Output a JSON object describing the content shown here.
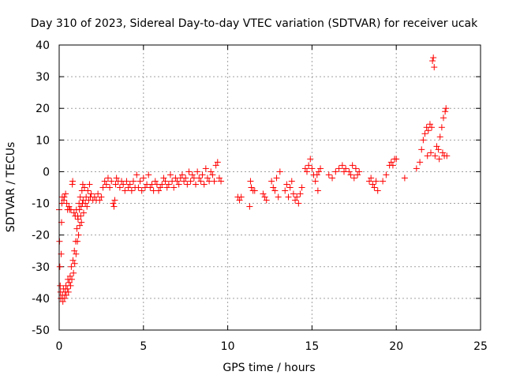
{
  "chart_data": {
    "type": "scatter",
    "title": "Day 310 of 2023, Sidereal Day-to-day VTEC variation (SDTVAR) for receiver ucak",
    "xlabel": "GPS time / hours",
    "ylabel": "SDTVAR / TECUs",
    "xlim": [
      0,
      25
    ],
    "ylim": [
      -50,
      40
    ],
    "xticks": [
      0,
      5,
      10,
      15,
      20,
      25
    ],
    "yticks": [
      -50,
      -40,
      -30,
      -20,
      -10,
      0,
      10,
      20,
      30,
      40
    ],
    "xtick_labels": [
      "0",
      "5",
      "10",
      "15",
      "20",
      "25"
    ],
    "ytick_labels": [
      "-50",
      "-40",
      "-30",
      "-20",
      "-10",
      "0",
      "10",
      "20",
      "30",
      "40"
    ],
    "grid": true,
    "marker": "+",
    "color": "#ff0000",
    "series": [
      {
        "name": "SDTVAR",
        "points": [
          [
            0.0,
            -12
          ],
          [
            0.02,
            -22
          ],
          [
            0.04,
            -30
          ],
          [
            0.06,
            -36
          ],
          [
            0.08,
            -38
          ],
          [
            0.1,
            -40
          ],
          [
            0.12,
            -26
          ],
          [
            0.14,
            -16
          ],
          [
            0.16,
            -10
          ],
          [
            0.18,
            -8
          ],
          [
            0.2,
            -39
          ],
          [
            0.22,
            -41
          ],
          [
            0.25,
            -37
          ],
          [
            0.28,
            -9
          ],
          [
            0.3,
            -8
          ],
          [
            0.32,
            -40
          ],
          [
            0.35,
            -38
          ],
          [
            0.38,
            -7
          ],
          [
            0.4,
            -36
          ],
          [
            0.42,
            -39
          ],
          [
            0.45,
            -10
          ],
          [
            0.48,
            -37
          ],
          [
            0.5,
            -12
          ],
          [
            0.52,
            -34
          ],
          [
            0.55,
            -38
          ],
          [
            0.58,
            -11
          ],
          [
            0.6,
            -35
          ],
          [
            0.62,
            -12
          ],
          [
            0.65,
            -33
          ],
          [
            0.68,
            -36
          ],
          [
            0.7,
            -12
          ],
          [
            0.72,
            -30
          ],
          [
            0.75,
            -34
          ],
          [
            0.78,
            -4
          ],
          [
            0.8,
            -3
          ],
          [
            0.82,
            -28
          ],
          [
            0.85,
            -32
          ],
          [
            0.88,
            -13
          ],
          [
            0.9,
            -25
          ],
          [
            0.92,
            -29
          ],
          [
            0.95,
            -14
          ],
          [
            0.98,
            -22
          ],
          [
            1.0,
            -26
          ],
          [
            1.02,
            -12
          ],
          [
            1.05,
            -18
          ],
          [
            1.08,
            -22
          ],
          [
            1.1,
            -14
          ],
          [
            1.12,
            -15
          ],
          [
            1.15,
            -20
          ],
          [
            1.18,
            -10
          ],
          [
            1.2,
            -12
          ],
          [
            1.22,
            -17
          ],
          [
            1.25,
            -8
          ],
          [
            1.28,
            -14
          ],
          [
            1.3,
            -11
          ],
          [
            1.32,
            -16
          ],
          [
            1.35,
            -6
          ],
          [
            1.38,
            -10
          ],
          [
            1.4,
            -4
          ],
          [
            1.42,
            -9
          ],
          [
            1.45,
            -13
          ],
          [
            1.5,
            -5
          ],
          [
            1.55,
            -10
          ],
          [
            1.6,
            -8
          ],
          [
            1.65,
            -11
          ],
          [
            1.7,
            -6
          ],
          [
            1.75,
            -9
          ],
          [
            1.8,
            -4
          ],
          [
            1.85,
            -8
          ],
          [
            1.9,
            -7
          ],
          [
            2.0,
            -9
          ],
          [
            2.1,
            -8
          ],
          [
            2.2,
            -9
          ],
          [
            2.3,
            -7
          ],
          [
            2.4,
            -9
          ],
          [
            2.5,
            -8
          ],
          [
            2.6,
            -5
          ],
          [
            2.7,
            -3
          ],
          [
            2.8,
            -4
          ],
          [
            2.9,
            -2
          ],
          [
            3.0,
            -5
          ],
          [
            3.1,
            -3
          ],
          [
            3.2,
            -10
          ],
          [
            3.25,
            -11
          ],
          [
            3.3,
            -9
          ],
          [
            3.35,
            -4
          ],
          [
            3.4,
            -2
          ],
          [
            3.5,
            -3
          ],
          [
            3.6,
            -5
          ],
          [
            3.7,
            -3
          ],
          [
            3.8,
            -4
          ],
          [
            3.9,
            -6
          ],
          [
            4.0,
            -3
          ],
          [
            4.1,
            -5
          ],
          [
            4.2,
            -4
          ],
          [
            4.3,
            -6
          ],
          [
            4.4,
            -3
          ],
          [
            4.5,
            -5
          ],
          [
            4.6,
            -1
          ],
          [
            4.7,
            -5
          ],
          [
            4.8,
            -3
          ],
          [
            4.9,
            -6
          ],
          [
            5.0,
            -2
          ],
          [
            5.1,
            -5
          ],
          [
            5.2,
            -4
          ],
          [
            5.3,
            -1
          ],
          [
            5.4,
            -5
          ],
          [
            5.5,
            -4
          ],
          [
            5.6,
            -6
          ],
          [
            5.7,
            -3
          ],
          [
            5.8,
            -4
          ],
          [
            5.9,
            -6
          ],
          [
            6.0,
            -5
          ],
          [
            6.1,
            -4
          ],
          [
            6.2,
            -2
          ],
          [
            6.3,
            -3
          ],
          [
            6.4,
            -5
          ],
          [
            6.5,
            -4
          ],
          [
            6.6,
            -1
          ],
          [
            6.7,
            -3
          ],
          [
            6.8,
            -5
          ],
          [
            6.9,
            -2
          ],
          [
            7.0,
            -3
          ],
          [
            7.1,
            -4
          ],
          [
            7.2,
            -2
          ],
          [
            7.3,
            -1
          ],
          [
            7.4,
            -3
          ],
          [
            7.5,
            -2
          ],
          [
            7.6,
            -4
          ],
          [
            7.7,
            0
          ],
          [
            7.8,
            -3
          ],
          [
            7.9,
            -1
          ],
          [
            8.0,
            -2
          ],
          [
            8.1,
            -4
          ],
          [
            8.2,
            0
          ],
          [
            8.3,
            -2
          ],
          [
            8.4,
            -3
          ],
          [
            8.5,
            -1
          ],
          [
            8.6,
            -4
          ],
          [
            8.7,
            1
          ],
          [
            8.8,
            -2
          ],
          [
            8.9,
            -3
          ],
          [
            9.0,
            0
          ],
          [
            9.1,
            -1
          ],
          [
            9.2,
            -3
          ],
          [
            9.3,
            2
          ],
          [
            9.4,
            3
          ],
          [
            9.5,
            -2
          ],
          [
            9.6,
            -3
          ],
          [
            10.6,
            -8
          ],
          [
            10.7,
            -9
          ],
          [
            10.8,
            -8
          ],
          [
            11.3,
            -11
          ],
          [
            11.35,
            -3
          ],
          [
            11.4,
            -5
          ],
          [
            11.5,
            -6
          ],
          [
            11.6,
            -6
          ],
          [
            12.1,
            -7
          ],
          [
            12.2,
            -8
          ],
          [
            12.3,
            -9
          ],
          [
            12.6,
            -3
          ],
          [
            12.7,
            -5
          ],
          [
            12.8,
            -6
          ],
          [
            12.9,
            -2
          ],
          [
            13.0,
            -8
          ],
          [
            13.1,
            0
          ],
          [
            13.4,
            -6
          ],
          [
            13.5,
            -4
          ],
          [
            13.6,
            -8
          ],
          [
            13.7,
            -5
          ],
          [
            13.8,
            -3
          ],
          [
            13.9,
            -7
          ],
          [
            14.0,
            -9
          ],
          [
            14.1,
            -8
          ],
          [
            14.2,
            -10
          ],
          [
            14.3,
            -7
          ],
          [
            14.4,
            -5
          ],
          [
            14.6,
            1
          ],
          [
            14.7,
            0
          ],
          [
            14.8,
            2
          ],
          [
            14.9,
            4
          ],
          [
            15.0,
            1
          ],
          [
            15.1,
            -1
          ],
          [
            15.2,
            -3
          ],
          [
            15.3,
            -1
          ],
          [
            15.35,
            -6
          ],
          [
            15.4,
            0
          ],
          [
            15.5,
            1
          ],
          [
            16.0,
            -1
          ],
          [
            16.2,
            -2
          ],
          [
            16.4,
            0
          ],
          [
            16.6,
            1
          ],
          [
            16.8,
            2
          ],
          [
            16.9,
            0
          ],
          [
            17.0,
            1
          ],
          [
            17.2,
            0
          ],
          [
            17.3,
            -1
          ],
          [
            17.4,
            2
          ],
          [
            17.5,
            -2
          ],
          [
            17.6,
            1
          ],
          [
            17.7,
            -1
          ],
          [
            17.8,
            0
          ],
          [
            18.4,
            -3
          ],
          [
            18.5,
            -2
          ],
          [
            18.6,
            -4
          ],
          [
            18.7,
            -5
          ],
          [
            18.8,
            -3
          ],
          [
            18.9,
            -6
          ],
          [
            19.2,
            -3
          ],
          [
            19.4,
            -1
          ],
          [
            19.6,
            2
          ],
          [
            19.7,
            3
          ],
          [
            19.8,
            2
          ],
          [
            19.9,
            4
          ],
          [
            20.0,
            4
          ],
          [
            20.5,
            -2
          ],
          [
            21.2,
            1
          ],
          [
            21.4,
            3
          ],
          [
            21.5,
            7
          ],
          [
            21.6,
            10
          ],
          [
            21.7,
            12
          ],
          [
            21.8,
            14
          ],
          [
            21.85,
            5
          ],
          [
            21.9,
            13
          ],
          [
            22.0,
            15
          ],
          [
            22.05,
            6
          ],
          [
            22.1,
            14
          ],
          [
            22.15,
            35
          ],
          [
            22.2,
            36
          ],
          [
            22.25,
            33
          ],
          [
            22.3,
            5
          ],
          [
            22.4,
            8
          ],
          [
            22.5,
            7
          ],
          [
            22.55,
            4
          ],
          [
            22.6,
            11
          ],
          [
            22.7,
            14
          ],
          [
            22.75,
            6
          ],
          [
            22.8,
            17
          ],
          [
            22.85,
            5
          ],
          [
            22.9,
            19
          ],
          [
            22.95,
            20
          ],
          [
            23.0,
            5
          ]
        ]
      }
    ]
  }
}
